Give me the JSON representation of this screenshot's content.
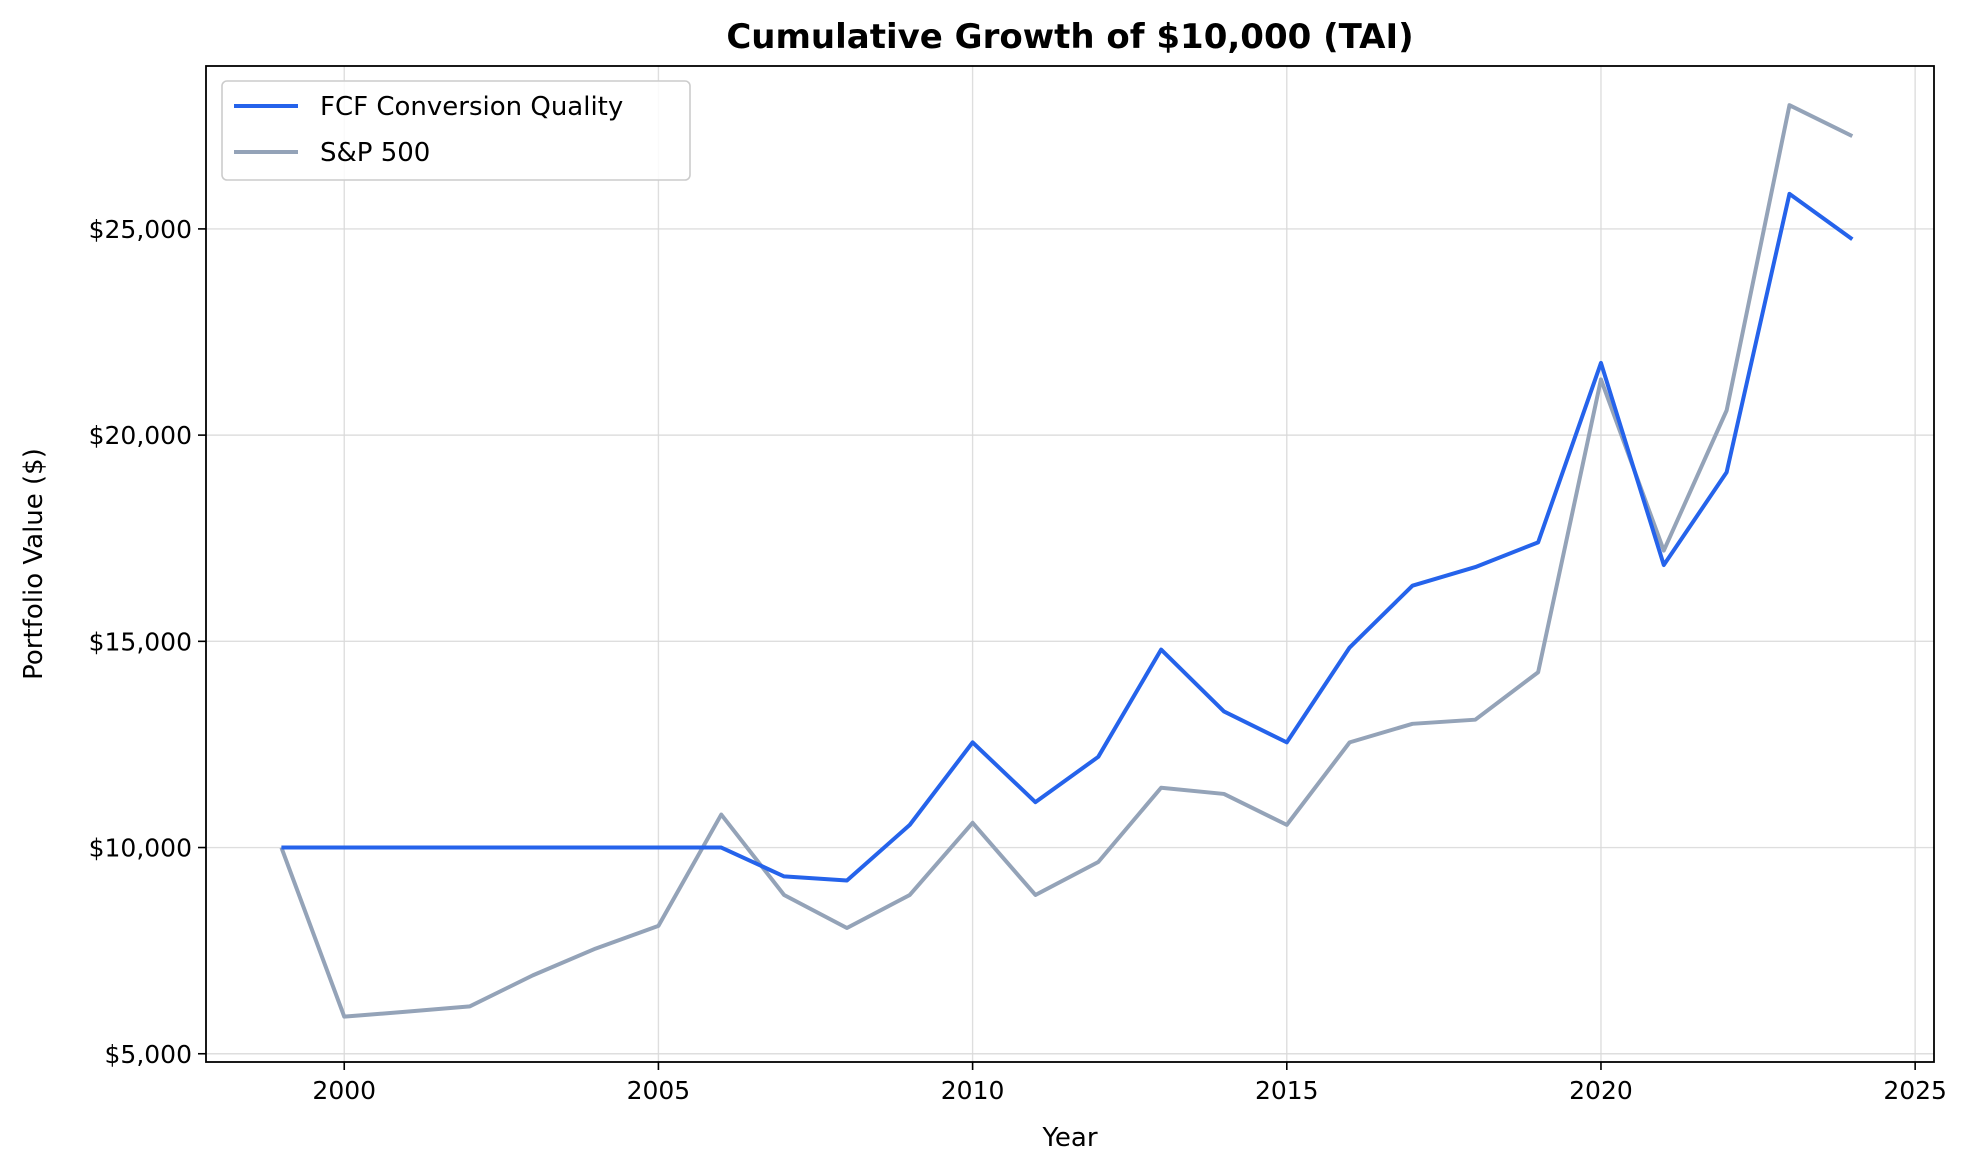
{
  "chart_data": {
    "type": "line",
    "title": "Cumulative Growth of $10,000 (TAI)",
    "xlabel": "Year",
    "ylabel": "Portfolio Value ($)",
    "xlim": [
      1997.8,
      2025.3
    ],
    "ylim": [
      4800,
      28950
    ],
    "x_ticks": [
      2000,
      2005,
      2010,
      2015,
      2020,
      2025
    ],
    "x_tick_labels": [
      "2000",
      "2005",
      "2010",
      "2015",
      "2020",
      "2025"
    ],
    "y_ticks": [
      5000,
      10000,
      15000,
      20000,
      25000
    ],
    "y_tick_labels": [
      "$5,000",
      "$10,000",
      "$15,000",
      "$20,000",
      "$25,000"
    ],
    "grid": true,
    "legend_position": "top-left",
    "x": [
      1999,
      2000,
      2001,
      2002,
      2003,
      2004,
      2005,
      2006,
      2007,
      2008,
      2009,
      2010,
      2011,
      2012,
      2013,
      2014,
      2015,
      2016,
      2017,
      2018,
      2019,
      2020,
      2021,
      2022,
      2023,
      2024
    ],
    "series": [
      {
        "name": "FCF Conversion Quality",
        "color": "#2563eb",
        "values": [
          10000,
          10000,
          10000,
          10000,
          10000,
          10000,
          10000,
          10000,
          9300,
          9200,
          10550,
          12550,
          11100,
          12200,
          14800,
          13300,
          12550,
          14850,
          16350,
          16800,
          17400,
          21750,
          16850,
          19100,
          25850,
          24750
        ]
      },
      {
        "name": "S&P 500",
        "color": "#94a3b8",
        "values": [
          10000,
          5900,
          6020,
          6150,
          6900,
          7550,
          8100,
          10800,
          8850,
          8050,
          8850,
          10600,
          8850,
          9650,
          11450,
          11300,
          10550,
          12550,
          13000,
          13100,
          14250,
          21350,
          17200,
          20600,
          28000,
          27250
        ]
      }
    ]
  }
}
